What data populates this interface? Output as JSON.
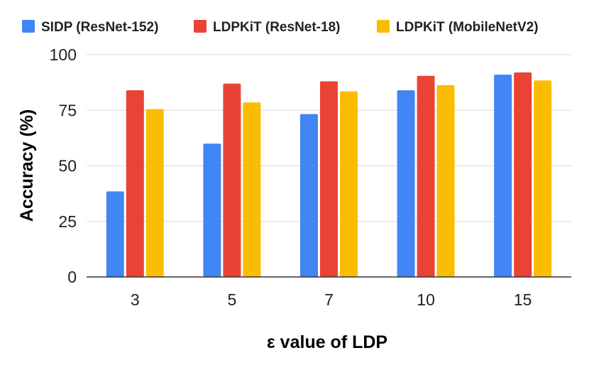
{
  "chart_data": {
    "type": "bar",
    "title": "",
    "xlabel": "ε value of LDP",
    "ylabel": "Accuracy (%)",
    "categories": [
      "3",
      "5",
      "7",
      "10",
      "15"
    ],
    "ylim": [
      0,
      100
    ],
    "yticks": [
      "0",
      "25",
      "50",
      "75",
      "100"
    ],
    "grid": true,
    "legend_position": "top",
    "series": [
      {
        "name": "SIDP (ResNet-152)",
        "color": "#4285f4",
        "values": [
          38.5,
          60,
          73.3,
          84,
          91
        ]
      },
      {
        "name": "LDPKiT (ResNet-18)",
        "color": "#ea4335",
        "values": [
          84,
          87,
          88,
          90.5,
          92
        ]
      },
      {
        "name": "LDPKiT (MobileNetV2)",
        "color": "#fbbc04",
        "values": [
          75.5,
          78.5,
          83.5,
          86.3,
          88.4
        ]
      }
    ]
  }
}
